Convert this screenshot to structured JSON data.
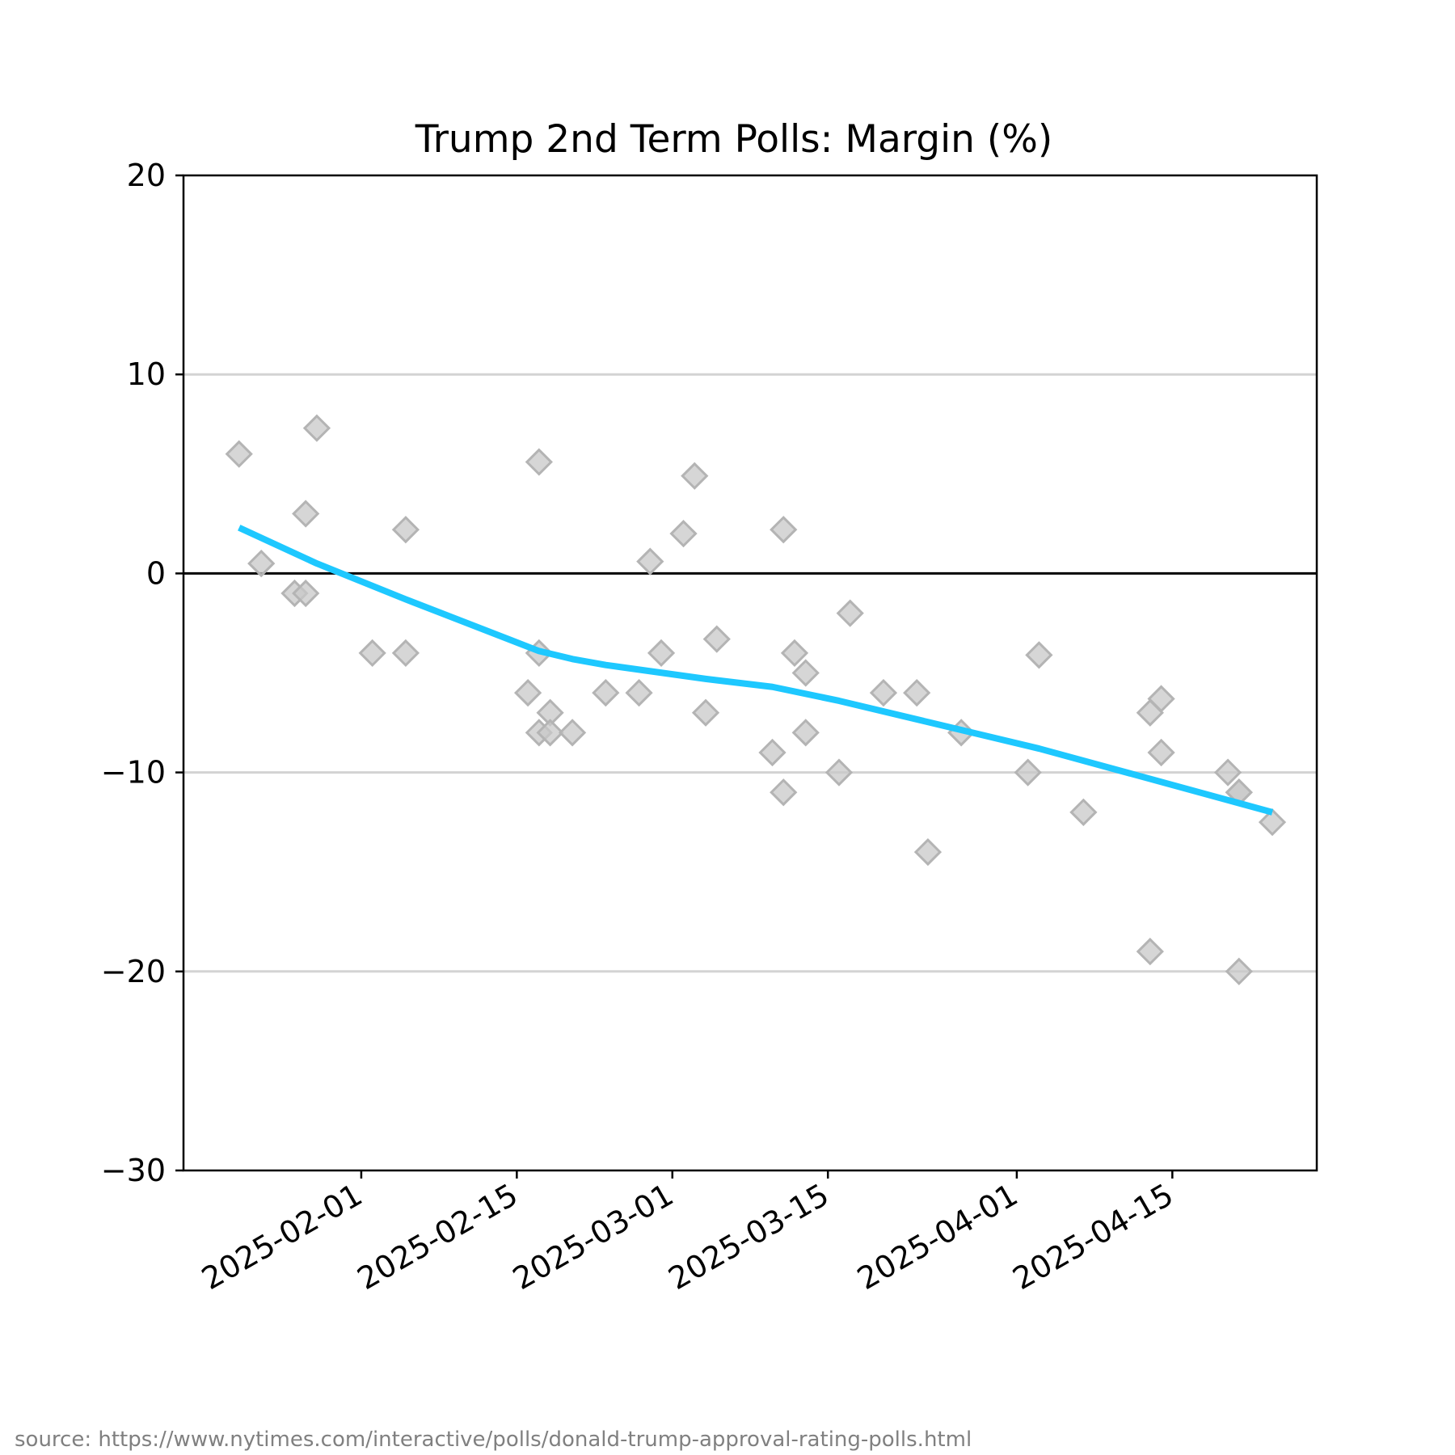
{
  "chart_data": {
    "type": "scatter",
    "title": "Trump 2nd Term Polls: Margin (%)",
    "xlabel": "",
    "ylabel": "",
    "ylim": [
      -30,
      20
    ],
    "xlim": [
      "2025-01-16",
      "2025-04-28"
    ],
    "y_ticks": [
      20,
      10,
      0,
      -10,
      -20,
      -30
    ],
    "y_tick_labels": [
      "20",
      "10",
      "0",
      "−10",
      "−20",
      "−30"
    ],
    "x_ticks": [
      "2025-02-01",
      "2025-02-15",
      "2025-03-01",
      "2025-03-15",
      "2025-04-01",
      "2025-04-15"
    ],
    "grid": "horizontal",
    "zero_line": true,
    "colors": {
      "trend": "#1ec8ff",
      "points": "#c8c8c8",
      "point_edge": "#b4b4b4",
      "grid": "#d3d3d3",
      "zero_line": "#000000"
    },
    "series": [
      {
        "type": "scatter",
        "marker": "diamond",
        "points": [
          {
            "x": "2025-01-21",
            "y": 6
          },
          {
            "x": "2025-01-23",
            "y": 0.5
          },
          {
            "x": "2025-01-26",
            "y": -1
          },
          {
            "x": "2025-01-27",
            "y": -1
          },
          {
            "x": "2025-01-27",
            "y": 3
          },
          {
            "x": "2025-01-28",
            "y": 7.3
          },
          {
            "x": "2025-02-02",
            "y": -4
          },
          {
            "x": "2025-02-05",
            "y": 2.2
          },
          {
            "x": "2025-02-05",
            "y": -4
          },
          {
            "x": "2025-02-16",
            "y": -6
          },
          {
            "x": "2025-02-17",
            "y": -4
          },
          {
            "x": "2025-02-17",
            "y": -8
          },
          {
            "x": "2025-02-17",
            "y": 5.6
          },
          {
            "x": "2025-02-18",
            "y": -7
          },
          {
            "x": "2025-02-18",
            "y": -8
          },
          {
            "x": "2025-02-20",
            "y": -8
          },
          {
            "x": "2025-02-23",
            "y": -6
          },
          {
            "x": "2025-02-26",
            "y": -6
          },
          {
            "x": "2025-02-27",
            "y": 0.6
          },
          {
            "x": "2025-02-28",
            "y": -4
          },
          {
            "x": "2025-03-02",
            "y": 2
          },
          {
            "x": "2025-03-03",
            "y": 4.9
          },
          {
            "x": "2025-03-04",
            "y": -7
          },
          {
            "x": "2025-03-05",
            "y": -3.3
          },
          {
            "x": "2025-03-10",
            "y": -9
          },
          {
            "x": "2025-03-11",
            "y": 2.2
          },
          {
            "x": "2025-03-11",
            "y": -11
          },
          {
            "x": "2025-03-12",
            "y": -4
          },
          {
            "x": "2025-03-13",
            "y": -5
          },
          {
            "x": "2025-03-13",
            "y": -8
          },
          {
            "x": "2025-03-16",
            "y": -10
          },
          {
            "x": "2025-03-17",
            "y": -2
          },
          {
            "x": "2025-03-20",
            "y": -6
          },
          {
            "x": "2025-03-23",
            "y": -6
          },
          {
            "x": "2025-03-24",
            "y": -14
          },
          {
            "x": "2025-03-27",
            "y": -8
          },
          {
            "x": "2025-04-02",
            "y": -10
          },
          {
            "x": "2025-04-03",
            "y": -4.1
          },
          {
            "x": "2025-04-07",
            "y": -12
          },
          {
            "x": "2025-04-13",
            "y": -7
          },
          {
            "x": "2025-04-13",
            "y": -19
          },
          {
            "x": "2025-04-14",
            "y": -6.3
          },
          {
            "x": "2025-04-14",
            "y": -9
          },
          {
            "x": "2025-04-20",
            "y": -10
          },
          {
            "x": "2025-04-21",
            "y": -11
          },
          {
            "x": "2025-04-21",
            "y": -11
          },
          {
            "x": "2025-04-21",
            "y": -20
          },
          {
            "x": "2025-04-24",
            "y": -12.5
          }
        ]
      },
      {
        "type": "line",
        "points": [
          {
            "x": "2025-01-21",
            "y": 2.3
          },
          {
            "x": "2025-01-28",
            "y": 0.5
          },
          {
            "x": "2025-02-05",
            "y": -1.3
          },
          {
            "x": "2025-02-17",
            "y": -3.9
          },
          {
            "x": "2025-02-20",
            "y": -4.3
          },
          {
            "x": "2025-02-23",
            "y": -4.6
          },
          {
            "x": "2025-03-04",
            "y": -5.3
          },
          {
            "x": "2025-03-10",
            "y": -5.7
          },
          {
            "x": "2025-03-16",
            "y": -6.4
          },
          {
            "x": "2025-04-03",
            "y": -8.8
          },
          {
            "x": "2025-04-24",
            "y": -12
          }
        ]
      }
    ]
  },
  "source_note": "source: https://www.nytimes.com/interactive/polls/donald-trump-approval-rating-polls.html"
}
